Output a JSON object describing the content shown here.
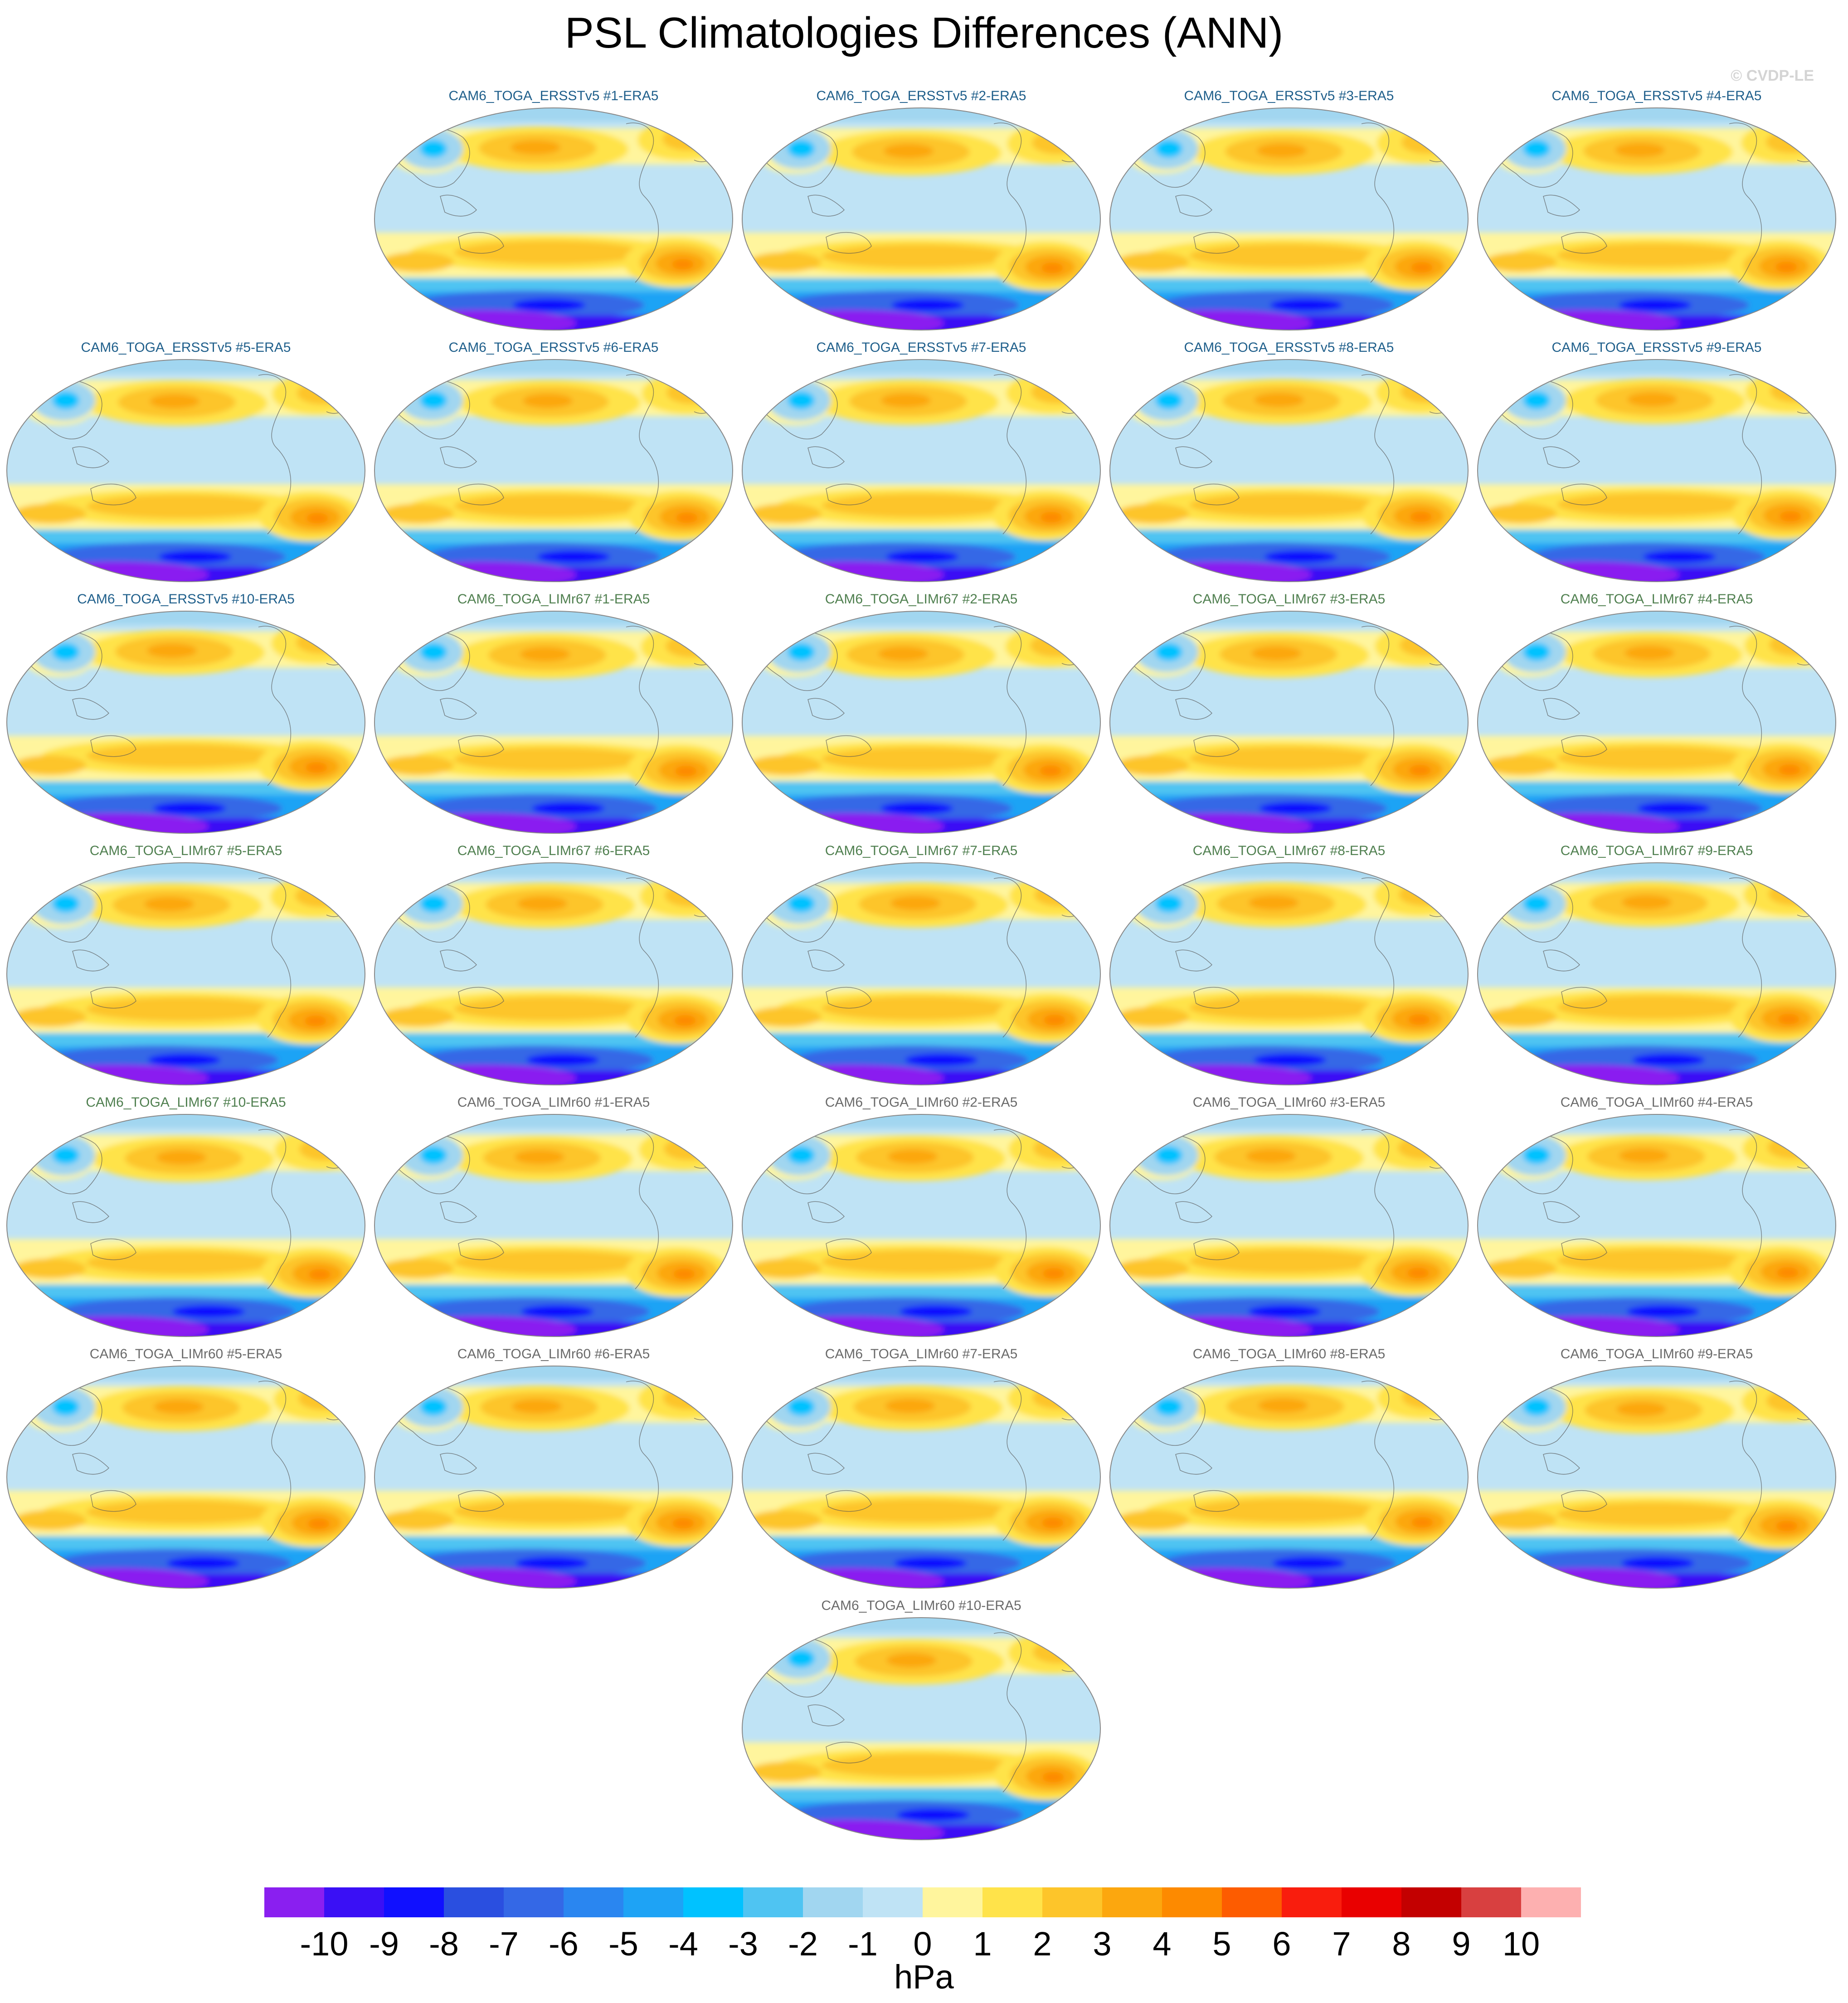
{
  "figure": {
    "title": "PSL Climatologies Differences (ANN)",
    "copyright": "© CVDP-LE"
  },
  "panel_groups": [
    {
      "name": "ERSSTv5",
      "title_color": "#1f5f8b"
    },
    {
      "name": "LIMr67",
      "title_color": "#4f7f4f"
    },
    {
      "name": "LIMr60",
      "title_color": "#6a6a6a"
    }
  ],
  "panels": [
    {
      "title": "CAM6_TOGA_ERSSTv5 #1-ERA5",
      "group": 0
    },
    {
      "title": "CAM6_TOGA_ERSSTv5 #2-ERA5",
      "group": 0
    },
    {
      "title": "CAM6_TOGA_ERSSTv5 #3-ERA5",
      "group": 0
    },
    {
      "title": "CAM6_TOGA_ERSSTv5 #4-ERA5",
      "group": 0
    },
    {
      "title": "CAM6_TOGA_ERSSTv5 #5-ERA5",
      "group": 0
    },
    {
      "title": "CAM6_TOGA_ERSSTv5 #6-ERA5",
      "group": 0
    },
    {
      "title": "CAM6_TOGA_ERSSTv5 #7-ERA5",
      "group": 0
    },
    {
      "title": "CAM6_TOGA_ERSSTv5 #8-ERA5",
      "group": 0
    },
    {
      "title": "CAM6_TOGA_ERSSTv5 #9-ERA5",
      "group": 0
    },
    {
      "title": "CAM6_TOGA_ERSSTv5 #10-ERA5",
      "group": 0
    },
    {
      "title": "CAM6_TOGA_LIMr67 #1-ERA5",
      "group": 1
    },
    {
      "title": "CAM6_TOGA_LIMr67 #2-ERA5",
      "group": 1
    },
    {
      "title": "CAM6_TOGA_LIMr67 #3-ERA5",
      "group": 1
    },
    {
      "title": "CAM6_TOGA_LIMr67 #4-ERA5",
      "group": 1
    },
    {
      "title": "CAM6_TOGA_LIMr67 #5-ERA5",
      "group": 1
    },
    {
      "title": "CAM6_TOGA_LIMr67 #6-ERA5",
      "group": 1
    },
    {
      "title": "CAM6_TOGA_LIMr67 #7-ERA5",
      "group": 1
    },
    {
      "title": "CAM6_TOGA_LIMr67 #8-ERA5",
      "group": 1
    },
    {
      "title": "CAM6_TOGA_LIMr67 #9-ERA5",
      "group": 1
    },
    {
      "title": "CAM6_TOGA_LIMr67 #10-ERA5",
      "group": 1
    },
    {
      "title": "CAM6_TOGA_LIMr60 #1-ERA5",
      "group": 2
    },
    {
      "title": "CAM6_TOGA_LIMr60 #2-ERA5",
      "group": 2
    },
    {
      "title": "CAM6_TOGA_LIMr60 #3-ERA5",
      "group": 2
    },
    {
      "title": "CAM6_TOGA_LIMr60 #4-ERA5",
      "group": 2
    },
    {
      "title": "CAM6_TOGA_LIMr60 #5-ERA5",
      "group": 2
    },
    {
      "title": "CAM6_TOGA_LIMr60 #6-ERA5",
      "group": 2
    },
    {
      "title": "CAM6_TOGA_LIMr60 #7-ERA5",
      "group": 2
    },
    {
      "title": "CAM6_TOGA_LIMr60 #8-ERA5",
      "group": 2
    },
    {
      "title": "CAM6_TOGA_LIMr60 #9-ERA5",
      "group": 2
    },
    {
      "title": "CAM6_TOGA_LIMr60 #10-ERA5",
      "group": 2
    }
  ],
  "colorbar": {
    "units": "hPa",
    "labels": [
      "-10",
      "-9",
      "-8",
      "-7",
      "-6",
      "-5",
      "-4",
      "-3",
      "-2",
      "-1",
      "0",
      "1",
      "2",
      "3",
      "4",
      "5",
      "6",
      "7",
      "8",
      "9",
      "10"
    ],
    "colors": [
      "#8a1ff0",
      "#3a10f5",
      "#1010ff",
      "#2a4fe0",
      "#3468e6",
      "#2a86f0",
      "#1ea3f5",
      "#00c2ff",
      "#4fc4f2",
      "#a1d6f0",
      "#bfe3f5",
      "#fff59d",
      "#ffe34a",
      "#fdc52a",
      "#fca70e",
      "#fd8a00",
      "#fd5c00",
      "#f91d0d",
      "#e90000",
      "#c30000",
      "#d84040",
      "#fdb0b0"
    ]
  },
  "colors": {
    "ocean_base": "#bfe3f5",
    "land_outline": "#555555",
    "map_border": "#888888"
  }
}
